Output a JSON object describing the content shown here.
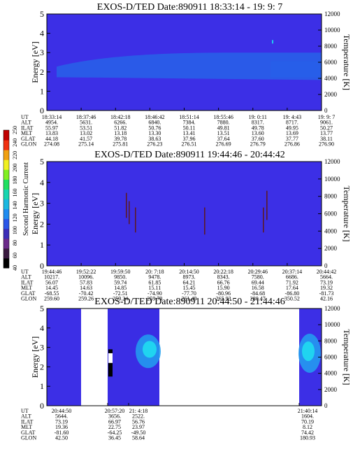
{
  "colorbar": {
    "label": "Second Harmonic Current",
    "ticks": [
      "40",
      "60",
      "80",
      "100",
      "120",
      "140",
      "160",
      "180",
      "200",
      "220",
      "240",
      "250"
    ],
    "colors": [
      "#000000",
      "#3a1a40",
      "#6b2a8a",
      "#3b2db8",
      "#2a56e8",
      "#1f8cf0",
      "#1ab8e0",
      "#18d6b0",
      "#20e060",
      "#80f020",
      "#f0f020",
      "#f0a010",
      "#f03010",
      "#c00000"
    ]
  },
  "colors": {
    "background": "#3c2fe6",
    "band": "#2a5ae8",
    "hot": "#20d4f0"
  },
  "chart_data": [
    {
      "type": "heatmap",
      "title": "EXOS-D/TED   Date:890911  18:33:14 - 19: 9: 7",
      "ylabel": "Energy [eV]",
      "ylabel_right": "Temperature [K]",
      "ylim": [
        0,
        5
      ],
      "yticks": [
        "0",
        "1",
        "2",
        "3",
        "4",
        "5"
      ],
      "ylim_right": [
        0,
        12000
      ],
      "yticks_right": [
        "0",
        "2000",
        "4000",
        "6000",
        "8000",
        "10000",
        "12000"
      ],
      "table_labels": [
        "UT",
        "ALT",
        "ILAT",
        "MLT",
        "GLAT",
        "GLON"
      ],
      "table": [
        [
          "18:33:14",
          "18:37:46",
          "18:42:18",
          "18:46:42",
          "18:51:14",
          "18:55:46",
          "19: 0:11",
          "19: 4:43",
          "19: 9: 7"
        ],
        [
          "4954.",
          "5631.",
          "6266.",
          "6840.",
          "7384.",
          "7880.",
          "8317.",
          "8717.",
          "9061."
        ],
        [
          "55.97",
          "53.51",
          "51.82",
          "50.76",
          "50.11",
          "49.81",
          "49.78",
          "49.95",
          "50.27"
        ],
        [
          "13.83",
          "13.02",
          "13.18",
          "13.30",
          "13.41",
          "13.51",
          "13.60",
          "13.69",
          "13.77"
        ],
        [
          "44.18",
          "41.57",
          "39.78",
          "38.63",
          "37.96",
          "37.64",
          "37.60",
          "37.77",
          "38.11"
        ],
        [
          "274.08",
          "275.14",
          "275.81",
          "276.23",
          "276.51",
          "276.69",
          "276.79",
          "276.86",
          "276.90"
        ]
      ],
      "band_ev": [
        1.8,
        3.0
      ]
    },
    {
      "type": "heatmap",
      "title": "EXOS-D/TED   Date:890911  19:44:46 - 20:44:42",
      "ylabel": "Energy [eV]",
      "ylabel_right": "Temperature [K]",
      "ylim": [
        0,
        5
      ],
      "yticks": [
        "0",
        "1",
        "2",
        "3",
        "4",
        "5"
      ],
      "ylim_right": [
        0,
        12000
      ],
      "yticks_right": [
        "0",
        "2000",
        "4000",
        "6000",
        "8000",
        "10000",
        "12000"
      ],
      "table_labels": [
        "UT",
        "ALT",
        "ILAT",
        "MLT",
        "GLAT",
        "GLON"
      ],
      "table": [
        [
          "19:44:46",
          "19:52:22",
          "19:59:50",
          "20: 7:18",
          "20:14:50",
          "20:22:18",
          "20:29:46",
          "20:37:14",
          "20:44:42"
        ],
        [
          "10217.",
          "10096.",
          "9850.",
          "9478.",
          "8973.",
          "8343.",
          "7580.",
          "6686.",
          "5664."
        ],
        [
          "56.07",
          "57.83",
          "59.74",
          "61.85",
          "64.21",
          "66.76",
          "69.44",
          "71.92",
          "73.19"
        ],
        [
          "14.45",
          "14.63",
          "14.85",
          "15.11",
          "15.45",
          "15.90",
          "16.58",
          "17.64",
          "19.32"
        ],
        [
          "-68.55",
          "-70.42",
          "-72.51",
          "-74.90",
          "-77.70",
          "-80.96",
          "-84.68",
          "-86.80",
          "-81.73"
        ],
        [
          "259.60",
          "259.26",
          "259.24",
          "259.79",
          "261.49",
          "265.93",
          "280.47",
          "350.52",
          "42.16"
        ]
      ]
    },
    {
      "type": "heatmap",
      "title": "EXOS-D/TED   Date:890911  20:44:50 - 21:44:46",
      "ylabel": "Energy [eV]",
      "ylabel_right": "Temperature [K]",
      "ylim": [
        0,
        5
      ],
      "yticks": [
        "0",
        "1",
        "2",
        "3",
        "4",
        "5"
      ],
      "ylim_right": [
        0,
        12000
      ],
      "yticks_right": [
        "0",
        "2000",
        "4000",
        "6000",
        "8000",
        "10000",
        "12000"
      ],
      "table_labels": [
        "UT",
        "ALT",
        "ILAT",
        "MLT",
        "GLAT",
        "GLON"
      ],
      "table_cols": [
        [
          "20:44:50",
          "5644.",
          "73.19",
          "19.36",
          "-81.60",
          "42.50"
        ],
        [
          "20:57:20",
          "3656.",
          "66.97",
          "22.75",
          "-64.25",
          "36.45"
        ],
        [
          "21: 4:18",
          "2522.",
          "56.76",
          "23.97",
          "-49.50",
          "58.64"
        ],
        [
          "21:40:14",
          "1604.",
          "70.19",
          "8.12",
          "74.42",
          "180.93"
        ]
      ]
    }
  ]
}
